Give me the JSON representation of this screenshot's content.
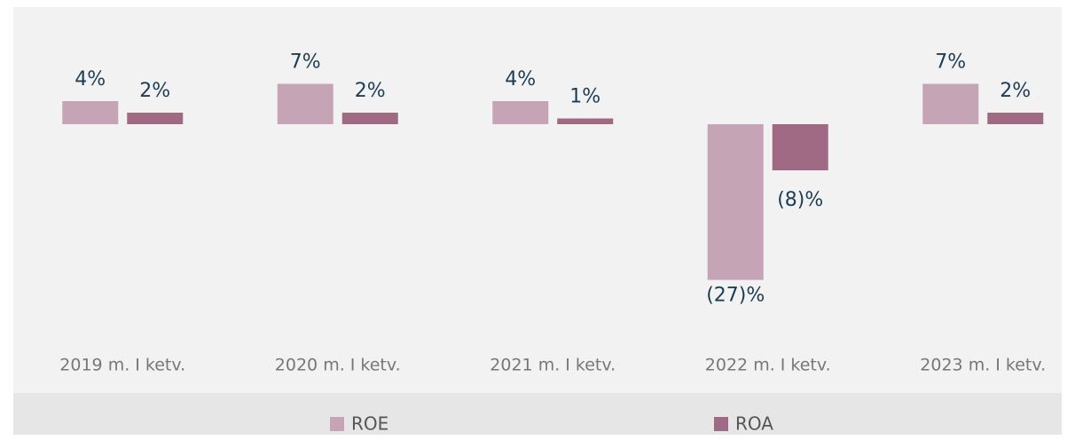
{
  "chart_data": {
    "type": "bar",
    "categories": [
      "2019 m. I ketv.",
      "2020 m. I ketv.",
      "2021 m. I ketv.",
      "2022 m. I ketv.",
      "2023 m. I ketv."
    ],
    "series": [
      {
        "name": "ROE",
        "color": "#c4a4b5",
        "values": [
          4,
          7,
          4,
          -27,
          7
        ],
        "value_labels": [
          "4%",
          "7%",
          "4%",
          "(27)%",
          "7%"
        ]
      },
      {
        "name": "ROA",
        "color": "#a06a85",
        "values": [
          2,
          2,
          1,
          -8,
          2
        ],
        "value_labels": [
          "2%",
          "2%",
          "1%",
          "(8)%",
          "2%"
        ]
      }
    ]
  }
}
